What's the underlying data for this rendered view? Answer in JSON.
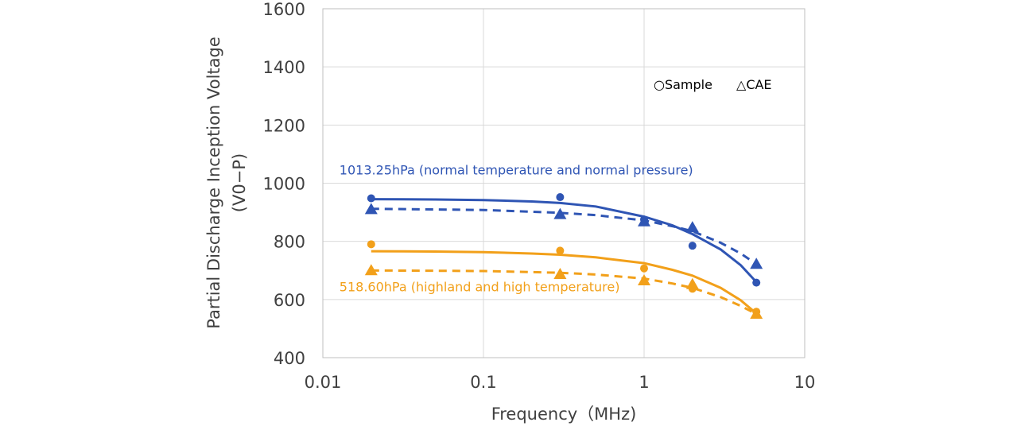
{
  "chart_data": {
    "type": "scatter",
    "x_scale": "log",
    "xlabel": "Frequency（MHz)",
    "ylabel_line1": "Partial Discharge Inception Voltage",
    "ylabel_line2": "(V0−P)",
    "xlim": [
      0.01,
      10
    ],
    "ylim": [
      400,
      1600
    ],
    "x_ticks": [
      {
        "value": 0.01,
        "label": "0.01"
      },
      {
        "value": 0.1,
        "label": "0.1"
      },
      {
        "value": 1,
        "label": "1"
      },
      {
        "value": 10,
        "label": "10"
      }
    ],
    "y_ticks": [
      {
        "value": 400,
        "label": "400"
      },
      {
        "value": 600,
        "label": "600"
      },
      {
        "value": 800,
        "label": "800"
      },
      {
        "value": 1000,
        "label": "1000"
      },
      {
        "value": 1200,
        "label": "1200"
      },
      {
        "value": 1400,
        "label": "1400"
      },
      {
        "value": 1600,
        "label": "1600"
      }
    ],
    "grid": true,
    "legend": {
      "placement": "top-right",
      "items": [
        {
          "symbol": "○",
          "label": "Sample"
        },
        {
          "symbol": "△",
          "label": "CAE"
        }
      ]
    },
    "annotations": [
      {
        "text": "1013.25hPa (normal temperature and normal pressure)",
        "color": "#2F55B4",
        "x": 0.02,
        "y": 1030
      },
      {
        "text": "518.60hPa (highland and high temperature)",
        "color": "#F2A01A",
        "x": 0.02,
        "y": 628
      }
    ],
    "series": [
      {
        "group": "1013.25hPa",
        "kind": "sample",
        "marker": "circle",
        "color": "#2F55B4",
        "points": [
          [
            0.02,
            948
          ],
          [
            0.3,
            952
          ],
          [
            1,
            875
          ],
          [
            2,
            785
          ],
          [
            5,
            658
          ]
        ],
        "fit": [
          [
            0.02,
            945
          ],
          [
            0.05,
            944
          ],
          [
            0.1,
            942
          ],
          [
            0.2,
            937
          ],
          [
            0.3,
            932
          ],
          [
            0.5,
            920
          ],
          [
            1,
            885
          ],
          [
            1.5,
            855
          ],
          [
            2,
            825
          ],
          [
            3,
            772
          ],
          [
            4,
            718
          ],
          [
            5,
            660
          ]
        ],
        "line_style": "solid"
      },
      {
        "group": "1013.25hPa",
        "kind": "cae",
        "marker": "triangle",
        "color": "#2F55B4",
        "points": [
          [
            0.02,
            910
          ],
          [
            0.3,
            893
          ],
          [
            1,
            868
          ],
          [
            2,
            848
          ],
          [
            5,
            722
          ]
        ],
        "fit": [
          [
            0.02,
            912
          ],
          [
            0.1,
            908
          ],
          [
            0.3,
            898
          ],
          [
            0.5,
            890
          ],
          [
            1,
            872
          ],
          [
            1.5,
            852
          ],
          [
            2,
            835
          ],
          [
            3,
            795
          ],
          [
            4,
            758
          ],
          [
            5,
            722
          ]
        ],
        "line_style": "dashed"
      },
      {
        "group": "518.60hPa",
        "kind": "sample",
        "marker": "circle",
        "color": "#F2A01A",
        "points": [
          [
            0.02,
            790
          ],
          [
            0.3,
            768
          ],
          [
            1,
            707
          ],
          [
            2,
            637
          ],
          [
            5,
            558
          ]
        ],
        "fit": [
          [
            0.02,
            766
          ],
          [
            0.05,
            765
          ],
          [
            0.1,
            763
          ],
          [
            0.2,
            758
          ],
          [
            0.3,
            754
          ],
          [
            0.5,
            745
          ],
          [
            1,
            725
          ],
          [
            1.5,
            702
          ],
          [
            2,
            682
          ],
          [
            3,
            640
          ],
          [
            4,
            597
          ],
          [
            5,
            552
          ]
        ],
        "line_style": "solid"
      },
      {
        "group": "518.60hPa",
        "kind": "cae",
        "marker": "triangle",
        "color": "#F2A01A",
        "points": [
          [
            0.02,
            700
          ],
          [
            0.3,
            687
          ],
          [
            1,
            665
          ],
          [
            2,
            652
          ],
          [
            5,
            550
          ]
        ],
        "fit": [
          [
            0.02,
            700
          ],
          [
            0.1,
            698
          ],
          [
            0.3,
            692
          ],
          [
            0.5,
            686
          ],
          [
            1,
            672
          ],
          [
            1.5,
            655
          ],
          [
            2,
            640
          ],
          [
            3,
            608
          ],
          [
            4,
            578
          ],
          [
            5,
            550
          ]
        ],
        "line_style": "dashed"
      }
    ]
  }
}
